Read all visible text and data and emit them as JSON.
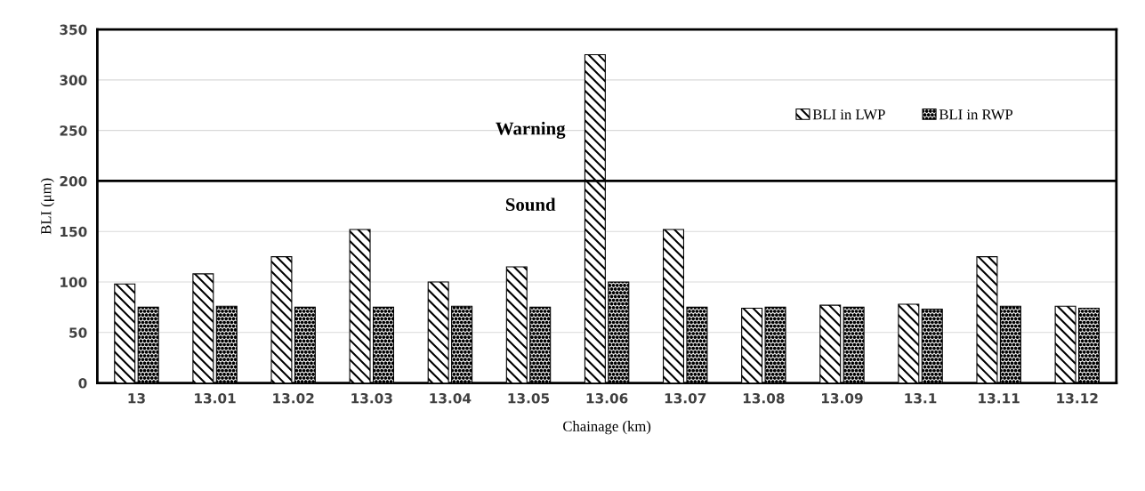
{
  "chart_data": {
    "type": "bar",
    "xlabel": "Chainage (km)",
    "ylabel": "BLI (μm)",
    "categories": [
      "13",
      "13.01",
      "13.02",
      "13.03",
      "13.04",
      "13.05",
      "13.06",
      "13.07",
      "13.08",
      "13.09",
      "13.1",
      "13.11",
      "13.12"
    ],
    "series": [
      {
        "name": "BLI in LWP",
        "color": "#000000",
        "values": [
          98,
          108,
          125,
          152,
          100,
          115,
          325,
          152,
          74,
          77,
          78,
          125,
          76
        ]
      },
      {
        "name": "BLI in RWP",
        "color": "#000000",
        "values": [
          75,
          76,
          75,
          75,
          76,
          75,
          100,
          75,
          75,
          75,
          73,
          76,
          74
        ]
      }
    ],
    "ylim": [
      0,
      350
    ],
    "yticks": [
      0,
      50,
      100,
      150,
      200,
      250,
      300,
      350
    ],
    "grid": "y",
    "legend": "top right",
    "ref_lines": [
      {
        "axis": "y",
        "value": 200,
        "label": null,
        "color": "#000000"
      }
    ],
    "annotations": [
      "Warning",
      "Sound"
    ]
  }
}
